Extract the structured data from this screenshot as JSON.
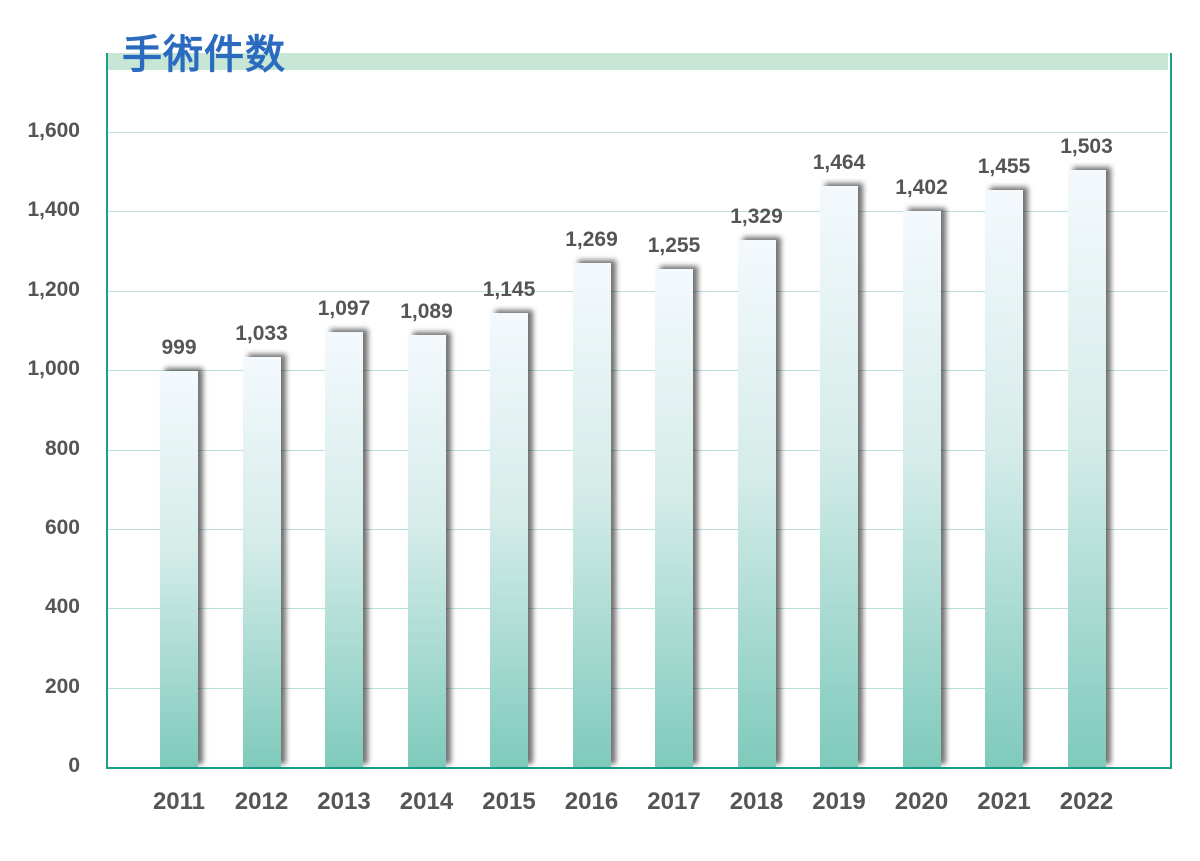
{
  "chart_data": {
    "type": "bar",
    "title": "手術件数",
    "xlabel": "",
    "ylabel": "",
    "categories": [
      "2011",
      "2012",
      "2013",
      "2014",
      "2015",
      "2016",
      "2017",
      "2018",
      "2019",
      "2020",
      "2021",
      "2022"
    ],
    "values": [
      999,
      1033,
      1097,
      1089,
      1145,
      1269,
      1255,
      1329,
      1464,
      1402,
      1455,
      1503
    ],
    "value_labels": [
      "999",
      "1,033",
      "1,097",
      "1,089",
      "1,145",
      "1,269",
      "1,255",
      "1,329",
      "1,464",
      "1,402",
      "1,455",
      "1,503"
    ],
    "ylim": [
      0,
      1600
    ],
    "yticks": [
      0,
      200,
      400,
      600,
      800,
      1000,
      1200,
      1400,
      1600
    ],
    "ytick_labels": [
      "0",
      "200",
      "400",
      "600",
      "800",
      "1,000",
      "1,200",
      "1,400",
      "1,600"
    ],
    "grid": true,
    "legend": null,
    "colors": {
      "bar_top": "#f4f9fd",
      "bar_bottom": "#7fcabc",
      "axis": "#1aa08a",
      "grid": "#b8e2d8",
      "title": "#2a6bbf",
      "band": "#c8e6d6"
    }
  }
}
